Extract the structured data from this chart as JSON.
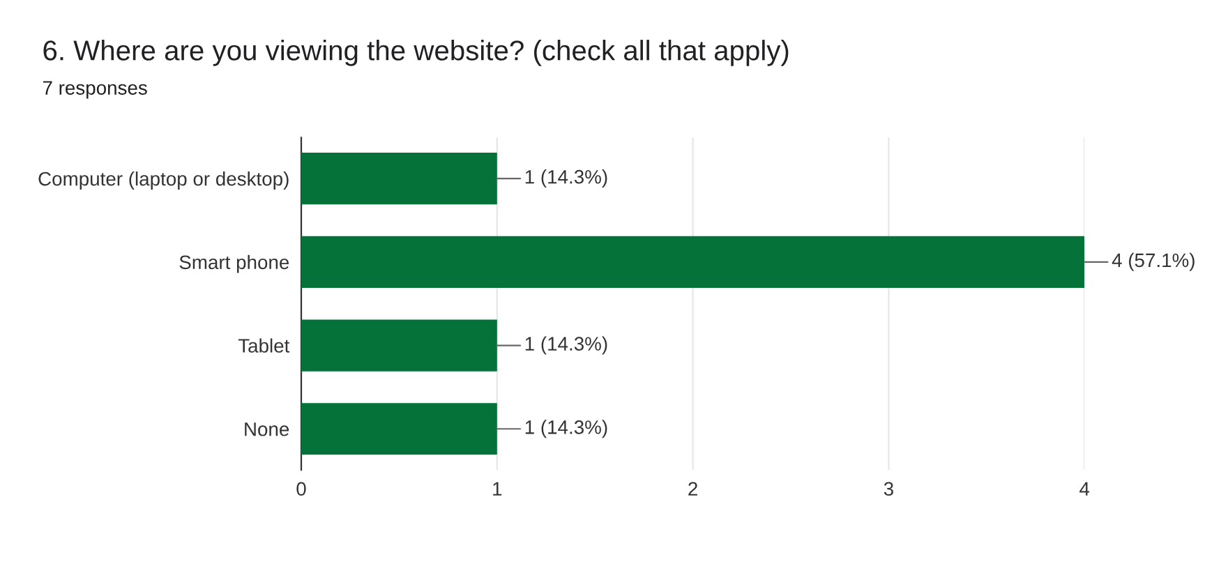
{
  "chart_data": {
    "type": "bar",
    "orientation": "horizontal",
    "title": "6. Where are you viewing the website? (check all that apply)",
    "subtitle": "7 responses",
    "categories": [
      "Computer (laptop or desktop)",
      "Smart phone",
      "Tablet",
      "None"
    ],
    "values": [
      1,
      4,
      1,
      1
    ],
    "color": "#047239",
    "value_labels": [
      "1 (14.3%)",
      "4 (57.1%)",
      "1 (14.3%)",
      "1 (14.3%)"
    ],
    "xlim": [
      0,
      4
    ],
    "xticks": [
      0,
      1,
      2,
      3,
      4
    ],
    "grid": "x",
    "legend": false
  }
}
